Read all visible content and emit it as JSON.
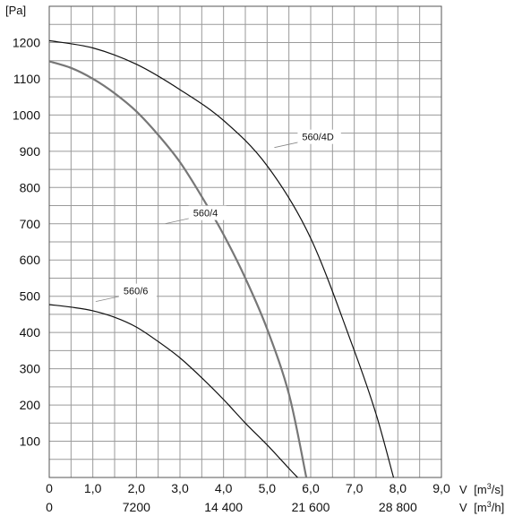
{
  "chart_data": {
    "type": "line",
    "title": "",
    "y_unit": "[Pa]",
    "x_unit_primary": "V [m³/s]",
    "x_unit_secondary": "V [m³/h]",
    "x_label_prefix": "V",
    "x_unit_primary_text": "[m",
    "x_unit_primary_exp": "3",
    "x_unit_primary_tail": "/s]",
    "x_unit_secondary_text": "[m",
    "x_unit_secondary_exp": "3",
    "x_unit_secondary_tail": "/h]",
    "xlim": [
      0,
      9
    ],
    "ylim": [
      0,
      1300
    ],
    "grid": true,
    "y_ticks": [
      100,
      200,
      300,
      400,
      500,
      600,
      700,
      800,
      900,
      1000,
      1100,
      1200
    ],
    "x_ticks_primary": [
      {
        "value": 0,
        "label": "0"
      },
      {
        "value": 1,
        "label": "1,0"
      },
      {
        "value": 2,
        "label": "2,0"
      },
      {
        "value": 3,
        "label": "3,0"
      },
      {
        "value": 4,
        "label": "4,0"
      },
      {
        "value": 5,
        "label": "5,0"
      },
      {
        "value": 6,
        "label": "6,0"
      },
      {
        "value": 7,
        "label": "7,0"
      },
      {
        "value": 8,
        "label": "8,0"
      },
      {
        "value": 9,
        "label": "9,0"
      }
    ],
    "x_ticks_secondary": [
      {
        "value": 0,
        "label": "0"
      },
      {
        "value": 2,
        "label": "7200"
      },
      {
        "value": 4,
        "label": "14 400"
      },
      {
        "value": 6,
        "label": "21 600"
      },
      {
        "value": 8,
        "label": "28 800"
      }
    ],
    "series": [
      {
        "name": "560/4D",
        "color": "#111111",
        "points": [
          [
            0,
            1205
          ],
          [
            1,
            1185
          ],
          [
            2,
            1140
          ],
          [
            3,
            1070
          ],
          [
            4,
            985
          ],
          [
            5,
            860
          ],
          [
            6,
            660
          ],
          [
            7,
            350
          ],
          [
            7.5,
            175
          ],
          [
            7.9,
            0
          ]
        ],
        "label_at": [
          5.7,
          935
        ]
      },
      {
        "name": "560/4",
        "color": "#777777",
        "points": [
          [
            0,
            1148
          ],
          [
            0.5,
            1130
          ],
          [
            1,
            1100
          ],
          [
            1.5,
            1060
          ],
          [
            2,
            1010
          ],
          [
            2.5,
            945
          ],
          [
            3,
            870
          ],
          [
            3.5,
            775
          ],
          [
            4,
            670
          ],
          [
            4.5,
            550
          ],
          [
            5,
            410
          ],
          [
            5.5,
            230
          ],
          [
            5.9,
            0
          ]
        ],
        "label_at": [
          3.2,
          725
        ]
      },
      {
        "name": "560/6",
        "color": "#111111",
        "points": [
          [
            0,
            477
          ],
          [
            0.5,
            470
          ],
          [
            1,
            460
          ],
          [
            1.5,
            442
          ],
          [
            2,
            415
          ],
          [
            2.5,
            375
          ],
          [
            3,
            330
          ],
          [
            3.5,
            275
          ],
          [
            4,
            215
          ],
          [
            4.5,
            150
          ],
          [
            5,
            90
          ],
          [
            5.5,
            25
          ],
          [
            5.7,
            0
          ]
        ],
        "label_at": [
          1.6,
          510
        ]
      }
    ]
  }
}
